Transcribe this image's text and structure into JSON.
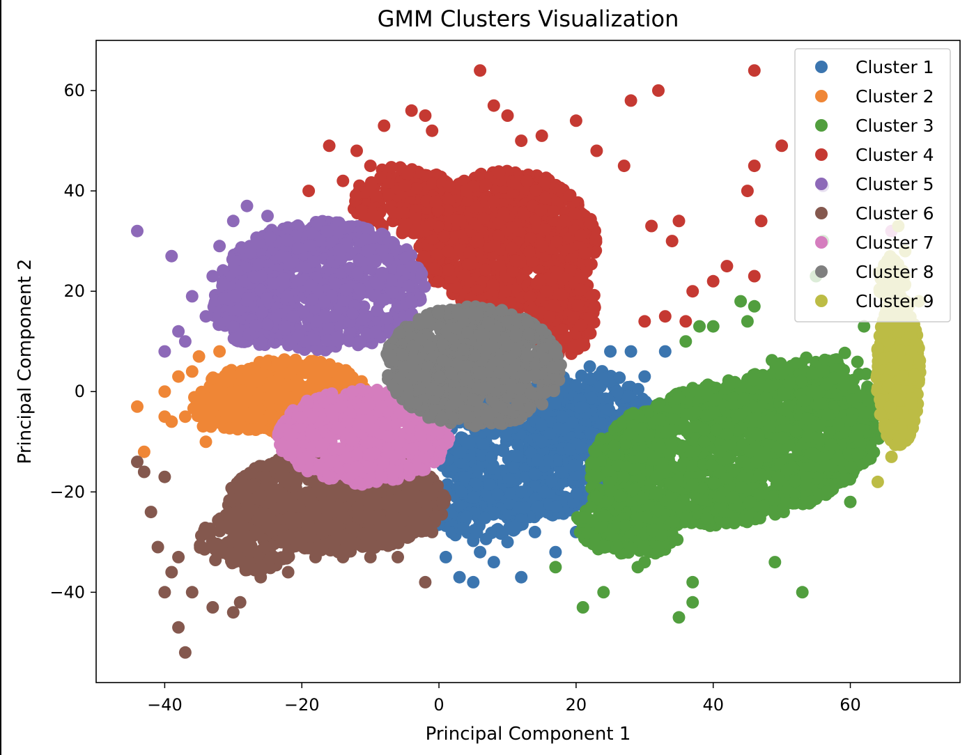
{
  "chart_data": {
    "type": "scatter",
    "title": "GMM Clusters Visualization",
    "xlabel": "Principal Component 1",
    "ylabel": "Principal Component 2",
    "xlim": [
      -50,
      76
    ],
    "ylim": [
      -58,
      70
    ],
    "xticks": [
      -40,
      -20,
      0,
      20,
      40,
      60
    ],
    "yticks": [
      -40,
      -20,
      0,
      20,
      40,
      60
    ],
    "grid": false,
    "legend_position": "top-right",
    "series": [
      {
        "name": "Cluster 1",
        "color": "#3b75af",
        "x": [
          1,
          3,
          5,
          6,
          8,
          10,
          12,
          14,
          17,
          20,
          22,
          25,
          28,
          30,
          33,
          12,
          4,
          15,
          26,
          18
        ],
        "y": [
          -33,
          -37,
          -38,
          -32,
          -34,
          -30,
          -37,
          -28,
          -32,
          -28,
          5,
          8,
          8,
          3,
          8,
          -20,
          -25,
          -10,
          0,
          -5
        ],
        "regions": [
          {
            "cx": 14,
            "cy": -12,
            "rx": 15,
            "ry": 13,
            "angle": 32,
            "n": 700
          },
          {
            "cx": 22,
            "cy": -4,
            "rx": 9,
            "ry": 8,
            "angle": 20,
            "n": 160
          },
          {
            "cx": 6,
            "cy": -24,
            "rx": 7,
            "ry": 6,
            "angle": 0,
            "n": 120
          }
        ]
      },
      {
        "name": "Cluster 2",
        "color": "#ef8636",
        "x": [
          -44,
          -43,
          -40,
          -39,
          -40,
          -37,
          -36,
          -35,
          -34,
          -38,
          -32
        ],
        "y": [
          -3,
          -12,
          -5,
          -6,
          0,
          -5,
          4,
          7,
          -10,
          3,
          8
        ],
        "regions": [
          {
            "cx": -22,
            "cy": -1,
            "rx": 12,
            "ry": 7.5,
            "angle": 0,
            "n": 520
          },
          {
            "cx": -32,
            "cy": -3,
            "rx": 4,
            "ry": 6,
            "angle": 0,
            "n": 60
          }
        ]
      },
      {
        "name": "Cluster 3",
        "color": "#519e3e",
        "x": [
          21,
          24,
          30,
          35,
          37,
          37,
          38,
          40,
          44,
          45,
          46,
          49,
          53,
          55,
          56,
          60,
          62,
          36,
          29,
          17
        ],
        "y": [
          -43,
          -40,
          -34,
          -45,
          -42,
          -38,
          13,
          13,
          18,
          14,
          17,
          -34,
          -40,
          23,
          30,
          -22,
          13,
          10,
          -35,
          -35
        ],
        "regions": [
          {
            "cx": 43,
            "cy": -12,
            "rx": 22,
            "ry": 14,
            "angle": 18,
            "n": 1500
          },
          {
            "cx": 28,
            "cy": -26,
            "rx": 8,
            "ry": 7,
            "angle": 0,
            "n": 220
          },
          {
            "cx": 58,
            "cy": -4,
            "rx": 6,
            "ry": 12,
            "angle": 0,
            "n": 200
          },
          {
            "cx": 52,
            "cy": 2,
            "rx": 7,
            "ry": 5,
            "angle": 0,
            "n": 100
          }
        ]
      },
      {
        "name": "Cluster 4",
        "color": "#c53932",
        "x": [
          6,
          8,
          10,
          12,
          15,
          20,
          -2,
          -4,
          -1,
          -12,
          -16,
          -19,
          23,
          27,
          28,
          32,
          35,
          37,
          40,
          42,
          45,
          46,
          47,
          50,
          46,
          30,
          33,
          36,
          31,
          34,
          46,
          -8,
          -14,
          -10,
          4
        ],
        "y": [
          64,
          57,
          55,
          50,
          51,
          54,
          55,
          56,
          52,
          48,
          49,
          40,
          48,
          45,
          58,
          60,
          34,
          20,
          22,
          25,
          40,
          45,
          34,
          49,
          64,
          14,
          15,
          14,
          33,
          30,
          23,
          53,
          42,
          45,
          40
        ],
        "regions": [
          {
            "cx": 10,
            "cy": 30,
            "rx": 13,
            "ry": 14,
            "angle": 0,
            "n": 900
          },
          {
            "cx": 18,
            "cy": 16,
            "rx": 5,
            "ry": 9,
            "angle": 0,
            "n": 200
          },
          {
            "cx": -5,
            "cy": 38,
            "rx": 8,
            "ry": 7,
            "angle": 0,
            "n": 200
          }
        ]
      },
      {
        "name": "Cluster 5",
        "color": "#8d69b8",
        "x": [
          -44,
          -39,
          -40,
          -38,
          -37,
          -36,
          -33,
          -30,
          -28,
          -25,
          -32,
          -34,
          56
        ],
        "y": [
          32,
          27,
          8,
          12,
          10,
          19,
          23,
          34,
          37,
          35,
          29,
          15,
          41
        ],
        "regions": [
          {
            "cx": -17,
            "cy": 21,
            "rx": 15,
            "ry": 13,
            "angle": 0,
            "n": 900
          },
          {
            "cx": -27,
            "cy": 17,
            "rx": 6,
            "ry": 8,
            "angle": 0,
            "n": 150
          }
        ]
      },
      {
        "name": "Cluster 6",
        "color": "#84584e",
        "x": [
          -44,
          -43,
          -42,
          -40,
          -41,
          -39,
          -38,
          -37,
          -40,
          -36,
          -33,
          -30,
          -29,
          -26,
          -22,
          -18,
          -14,
          -10,
          -6,
          -2,
          -38,
          -1
        ],
        "y": [
          -14,
          -16,
          -24,
          -17,
          -31,
          -36,
          -47,
          -52,
          -40,
          -40,
          -43,
          -44,
          -42,
          -37,
          -36,
          -33,
          -33,
          -33,
          -33,
          -38,
          -33,
          -28
        ],
        "regions": [
          {
            "cx": -15,
            "cy": -22,
            "rx": 16,
            "ry": 10,
            "angle": 0,
            "n": 1000
          },
          {
            "cx": -28,
            "cy": -30,
            "rx": 7,
            "ry": 6,
            "angle": 0,
            "n": 150
          }
        ]
      },
      {
        "name": "Cluster 7",
        "color": "#d57dbe",
        "x": [
          66
        ],
        "y": [
          32
        ],
        "regions": [
          {
            "cx": -11,
            "cy": -9,
            "rx": 12.5,
            "ry": 9.5,
            "angle": 0,
            "n": 700
          }
        ]
      },
      {
        "name": "Cluster 8",
        "color": "#7f7f7f",
        "x": [],
        "y": [],
        "regions": [
          {
            "cx": 5,
            "cy": 5,
            "rx": 13,
            "ry": 12,
            "angle": -8,
            "n": 900
          }
        ]
      },
      {
        "name": "Cluster 9",
        "color": "#bcbc45",
        "x": [
          64,
          66,
          68,
          70,
          67
        ],
        "y": [
          -18,
          -13,
          28,
          18,
          33
        ],
        "regions": [
          {
            "cx": 67,
            "cy": 4,
            "rx": 3.2,
            "ry": 15,
            "angle": 0,
            "n": 650
          },
          {
            "cx": 66,
            "cy": 22,
            "rx": 2,
            "ry": 5,
            "angle": 0,
            "n": 60
          }
        ]
      }
    ]
  }
}
